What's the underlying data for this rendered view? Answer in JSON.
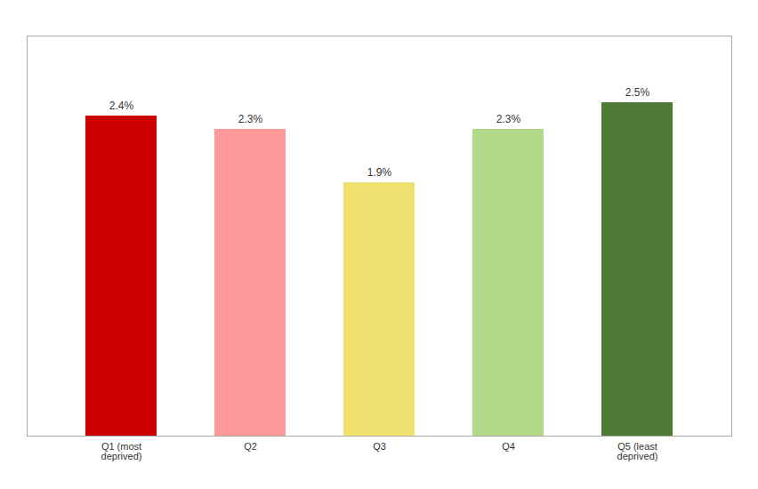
{
  "chart_data": {
    "type": "bar",
    "categories": [
      "Q1 (most\ndeprived)",
      "Q2",
      "Q3",
      "Q4",
      "Q5 (least\ndeprived)"
    ],
    "values": [
      2.4,
      2.3,
      1.9,
      2.3,
      2.5
    ],
    "value_labels": [
      "2.4%",
      "2.3%",
      "1.9%",
      "2.3%",
      "2.5%"
    ],
    "colors": [
      "#cc0000",
      "#ff9999",
      "#f0e070",
      "#b2d98a",
      "#4d7a34"
    ],
    "ylim": [
      0,
      3.0
    ],
    "data_labels": true,
    "tick_labels": "x"
  }
}
